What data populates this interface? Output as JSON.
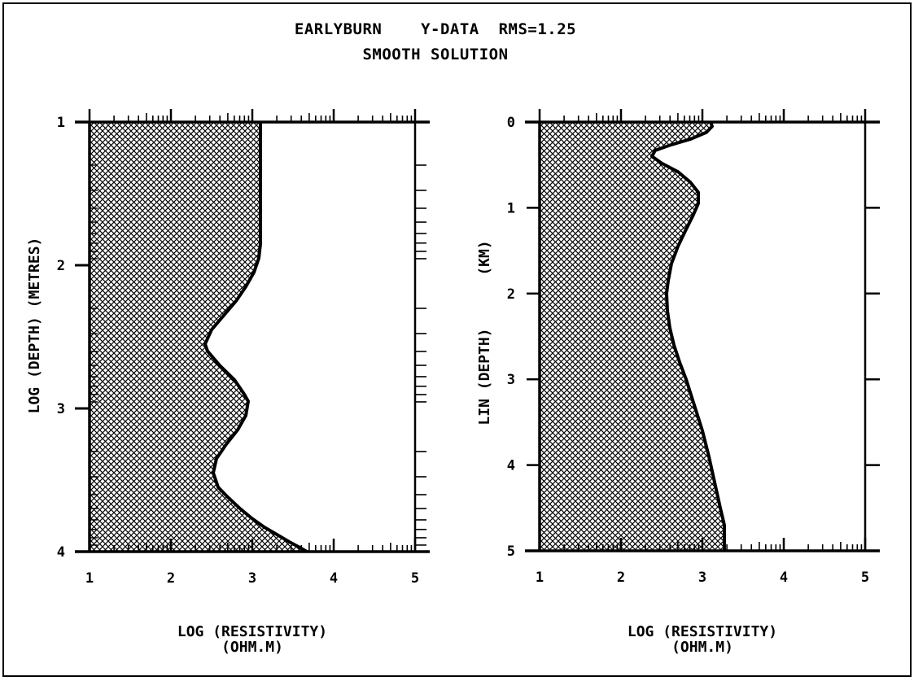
{
  "title": "EARLYBURN    Y-DATA  RMS=1.25",
  "subtitle": "SMOOTH SOLUTION",
  "colors": {
    "ink": "#000000",
    "background": "#ffffff",
    "fill_pattern": "crosshatch"
  },
  "chart_data": [
    {
      "type": "area",
      "panel": "left",
      "xlabel": "LOG (RESISTIVITY)",
      "xunit": "(OHM.M)",
      "ylabel": "LOG (DEPTH) (METRES)",
      "xlim": [
        1,
        5
      ],
      "ylim": [
        1,
        4
      ],
      "y_inverted": true,
      "x_ticks": [
        "1",
        "2",
        "3",
        "4",
        "5"
      ],
      "y_ticks": [
        "1",
        "2",
        "3",
        "4"
      ],
      "series": [
        {
          "x": [
            3.1,
            3.1,
            3.1,
            3.1,
            3.08,
            3.02,
            2.92,
            2.8,
            2.65,
            2.5,
            2.42,
            2.45,
            2.6,
            2.78,
            2.9,
            2.95,
            2.92,
            2.82,
            2.68,
            2.56,
            2.52,
            2.58,
            2.7,
            2.85,
            3.0,
            3.15,
            3.3,
            3.45,
            3.58,
            3.67
          ],
          "y": [
            1.0,
            1.4,
            1.7,
            1.85,
            1.95,
            2.05,
            2.15,
            2.25,
            2.35,
            2.45,
            2.55,
            2.6,
            2.7,
            2.8,
            2.9,
            2.95,
            3.05,
            3.15,
            3.25,
            3.35,
            3.45,
            3.55,
            3.62,
            3.7,
            3.77,
            3.83,
            3.88,
            3.93,
            3.97,
            4.0
          ]
        }
      ]
    },
    {
      "type": "area",
      "panel": "right",
      "xlabel": "LOG (RESISTIVITY)",
      "xunit": "(OHM.M)",
      "ylabel": "LIN (DEPTH)",
      "yunit": "(KM)",
      "xlim": [
        1,
        5
      ],
      "ylim": [
        0,
        5
      ],
      "y_inverted": true,
      "x_ticks": [
        "1",
        "2",
        "3",
        "4",
        "5"
      ],
      "y_ticks": [
        "0",
        "1",
        "2",
        "3",
        "4",
        "5"
      ],
      "series": [
        {
          "x": [
            3.1,
            3.12,
            3.05,
            2.85,
            2.6,
            2.42,
            2.38,
            2.5,
            2.7,
            2.85,
            2.95,
            2.95,
            2.88,
            2.8,
            2.7,
            2.62,
            2.58,
            2.56,
            2.57,
            2.6,
            2.65,
            2.72,
            2.8,
            2.9,
            3.0,
            3.08,
            3.15,
            3.22,
            3.27,
            3.27
          ],
          "y": [
            0.0,
            0.05,
            0.12,
            0.2,
            0.27,
            0.33,
            0.4,
            0.48,
            0.58,
            0.7,
            0.82,
            0.95,
            1.1,
            1.25,
            1.45,
            1.65,
            1.85,
            2.0,
            2.2,
            2.4,
            2.6,
            2.8,
            3.0,
            3.3,
            3.6,
            3.9,
            4.2,
            4.5,
            4.7,
            5.0
          ]
        }
      ]
    }
  ]
}
